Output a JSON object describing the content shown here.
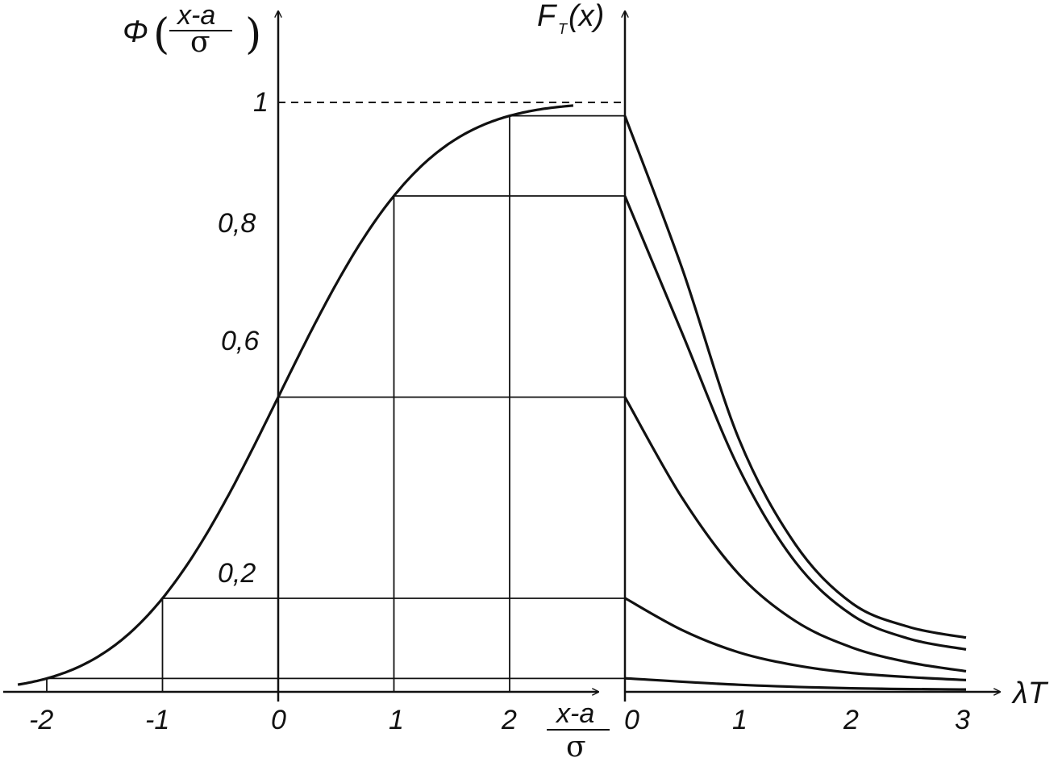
{
  "chart_data": {
    "type": "line",
    "panels": [
      {
        "name": "left",
        "y_label": {
          "func": "Φ",
          "num": "x-a",
          "den": "σ"
        },
        "x_label": {
          "num": "x-a",
          "den": "σ"
        },
        "x_ticks": [
          "-2",
          "-1",
          "0",
          "1",
          "2"
        ],
        "y_ticks": [
          {
            "value": 0.2,
            "label": "0,2"
          },
          {
            "value": 0.6,
            "label": "0,6"
          },
          {
            "value": 0.8,
            "label": "0,8"
          },
          {
            "value": 1.0,
            "label": "1"
          }
        ],
        "series": [
          {
            "type": "normal_cdf",
            "xlim": [
              -2.25,
              2.55
            ]
          }
        ],
        "reference_line": {
          "y": 1.0,
          "style": "dashed"
        },
        "guides_at_x": [
          -2,
          -1,
          0,
          1,
          2
        ]
      },
      {
        "name": "right",
        "y_label": {
          "main": "F",
          "sub": "T",
          "arg": "(x)"
        },
        "x_label": "λT",
        "x_ticks": [
          "0",
          "1",
          "2",
          "3"
        ],
        "series": [
          {
            "values": [
              [
                0,
                0.977
              ],
              [
                0.5,
                0.72
              ],
              [
                1,
                0.43
              ],
              [
                1.5,
                0.25
              ],
              [
                2,
                0.15
              ],
              [
                2.5,
                0.11
              ],
              [
                3,
                0.092
              ]
            ]
          },
          {
            "values": [
              [
                0,
                0.841
              ],
              [
                0.5,
                0.61
              ],
              [
                1,
                0.38
              ],
              [
                1.5,
                0.22
              ],
              [
                2,
                0.13
              ],
              [
                2.5,
                0.09
              ],
              [
                3,
                0.072
              ]
            ]
          },
          {
            "values": [
              [
                0,
                0.5
              ],
              [
                0.5,
                0.33
              ],
              [
                1,
                0.2
              ],
              [
                1.5,
                0.12
              ],
              [
                2,
                0.075
              ],
              [
                2.5,
                0.05
              ],
              [
                3,
                0.035
              ]
            ]
          },
          {
            "values": [
              [
                0,
                0.159
              ],
              [
                0.5,
                0.105
              ],
              [
                1,
                0.067
              ],
              [
                1.5,
                0.045
              ],
              [
                2,
                0.032
              ],
              [
                2.5,
                0.025
              ],
              [
                3,
                0.02
              ]
            ]
          },
          {
            "values": [
              [
                0,
                0.023
              ],
              [
                1,
                0.012
              ],
              [
                2,
                0.006
              ],
              [
                3,
                0.004
              ]
            ]
          }
        ]
      }
    ]
  }
}
